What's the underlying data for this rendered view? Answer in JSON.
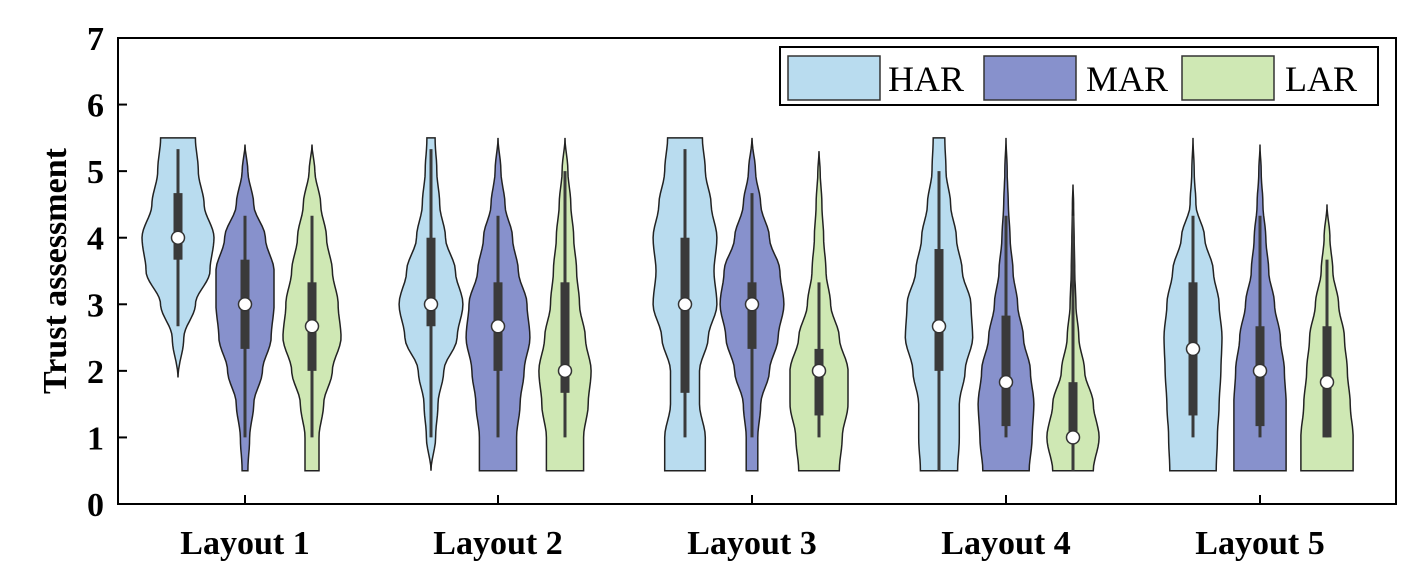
{
  "chart_data": {
    "type": "violin",
    "ylabel": "Trust assessment",
    "ylim": [
      0,
      7
    ],
    "yticks": [
      "0",
      "1",
      "2",
      "3",
      "4",
      "5",
      "6",
      "7"
    ],
    "categories": [
      "Layout 1",
      "Layout 2",
      "Layout 3",
      "Layout 4",
      "Layout 5"
    ],
    "legend_position": "top-right",
    "series": [
      {
        "name": "HAR",
        "color": "#b9dcef",
        "groups": [
          {
            "median": 4.0,
            "q1": 3.67,
            "q3": 4.67,
            "wlo": 2.67,
            "whi": 5.33,
            "profile": [
              [
                1.9,
                0
              ],
              [
                2.5,
                0.1
              ],
              [
                3.0,
                0.3
              ],
              [
                3.5,
                0.55
              ],
              [
                4.0,
                0.62
              ],
              [
                4.5,
                0.45
              ],
              [
                5.0,
                0.35
              ],
              [
                5.5,
                0.3
              ]
            ]
          },
          {
            "median": 3.0,
            "q1": 2.67,
            "q3": 4.0,
            "wlo": 1.0,
            "whi": 5.33,
            "profile": [
              [
                0.5,
                0
              ],
              [
                1.0,
                0.08
              ],
              [
                1.5,
                0.12
              ],
              [
                2.0,
                0.22
              ],
              [
                2.5,
                0.45
              ],
              [
                3.0,
                0.55
              ],
              [
                3.5,
                0.42
              ],
              [
                4.0,
                0.25
              ],
              [
                4.5,
                0.15
              ],
              [
                5.0,
                0.1
              ],
              [
                5.5,
                0.07
              ]
            ]
          },
          {
            "median": 3.0,
            "q1": 1.67,
            "q3": 4.0,
            "wlo": 1.0,
            "whi": 5.33,
            "profile": [
              [
                0.5,
                0.35
              ],
              [
                1.0,
                0.35
              ],
              [
                1.5,
                0.25
              ],
              [
                2.0,
                0.25
              ],
              [
                2.5,
                0.4
              ],
              [
                3.0,
                0.55
              ],
              [
                3.5,
                0.5
              ],
              [
                4.0,
                0.55
              ],
              [
                4.5,
                0.45
              ],
              [
                5.0,
                0.35
              ],
              [
                5.5,
                0.3
              ]
            ]
          },
          {
            "median": 2.67,
            "q1": 2.0,
            "q3": 3.83,
            "wlo": 0.5,
            "whi": 5.0,
            "profile": [
              [
                0.5,
                0.32
              ],
              [
                1.0,
                0.35
              ],
              [
                1.5,
                0.35
              ],
              [
                2.0,
                0.45
              ],
              [
                2.5,
                0.58
              ],
              [
                3.0,
                0.55
              ],
              [
                3.5,
                0.4
              ],
              [
                4.0,
                0.3
              ],
              [
                4.5,
                0.2
              ],
              [
                5.0,
                0.12
              ],
              [
                5.5,
                0.1
              ]
            ]
          },
          {
            "median": 2.33,
            "q1": 1.33,
            "q3": 3.33,
            "wlo": 1.0,
            "whi": 4.33,
            "profile": [
              [
                0.5,
                0.4
              ],
              [
                1.0,
                0.42
              ],
              [
                1.5,
                0.45
              ],
              [
                2.0,
                0.48
              ],
              [
                2.5,
                0.5
              ],
              [
                3.0,
                0.45
              ],
              [
                3.5,
                0.35
              ],
              [
                4.0,
                0.2
              ],
              [
                4.5,
                0.05
              ],
              [
                5.0,
                0.02
              ],
              [
                5.5,
                0
              ]
            ]
          }
        ]
      },
      {
        "name": "MAR",
        "color": "#8791cc",
        "groups": [
          {
            "median": 3.0,
            "q1": 2.33,
            "q3": 3.67,
            "wlo": 1.0,
            "whi": 4.33,
            "profile": [
              [
                0.5,
                0.05
              ],
              [
                1.0,
                0.08
              ],
              [
                1.5,
                0.15
              ],
              [
                2.0,
                0.3
              ],
              [
                2.5,
                0.45
              ],
              [
                3.0,
                0.5
              ],
              [
                3.5,
                0.5
              ],
              [
                4.0,
                0.35
              ],
              [
                4.5,
                0.15
              ],
              [
                5.0,
                0.05
              ],
              [
                5.4,
                0
              ]
            ]
          },
          {
            "median": 2.67,
            "q1": 2.0,
            "q3": 3.33,
            "wlo": 1.0,
            "whi": 4.33,
            "profile": [
              [
                0.5,
                0.32
              ],
              [
                1.0,
                0.32
              ],
              [
                1.5,
                0.38
              ],
              [
                2.0,
                0.45
              ],
              [
                2.5,
                0.55
              ],
              [
                3.0,
                0.5
              ],
              [
                3.5,
                0.35
              ],
              [
                4.0,
                0.25
              ],
              [
                4.5,
                0.12
              ],
              [
                5.0,
                0.05
              ],
              [
                5.5,
                0
              ]
            ]
          },
          {
            "median": 3.0,
            "q1": 2.33,
            "q3": 3.33,
            "wlo": 1.0,
            "whi": 4.67,
            "profile": [
              [
                0.5,
                0.1
              ],
              [
                1.0,
                0.1
              ],
              [
                1.5,
                0.15
              ],
              [
                2.0,
                0.3
              ],
              [
                2.5,
                0.45
              ],
              [
                3.0,
                0.55
              ],
              [
                3.5,
                0.48
              ],
              [
                4.0,
                0.3
              ],
              [
                4.5,
                0.15
              ],
              [
                5.0,
                0.06
              ],
              [
                5.5,
                0
              ]
            ]
          },
          {
            "median": 1.83,
            "q1": 1.17,
            "q3": 2.83,
            "wlo": 1.0,
            "whi": 4.33,
            "profile": [
              [
                0.5,
                0.4
              ],
              [
                1.0,
                0.45
              ],
              [
                1.5,
                0.48
              ],
              [
                2.0,
                0.42
              ],
              [
                2.5,
                0.3
              ],
              [
                3.0,
                0.2
              ],
              [
                3.5,
                0.12
              ],
              [
                4.0,
                0.07
              ],
              [
                4.5,
                0.04
              ],
              [
                5.0,
                0.02
              ],
              [
                5.5,
                0
              ]
            ]
          },
          {
            "median": 2.0,
            "q1": 1.17,
            "q3": 2.67,
            "wlo": 1.0,
            "whi": 4.33,
            "profile": [
              [
                0.5,
                0.45
              ],
              [
                1.0,
                0.45
              ],
              [
                1.5,
                0.45
              ],
              [
                2.0,
                0.42
              ],
              [
                2.5,
                0.35
              ],
              [
                3.0,
                0.25
              ],
              [
                3.5,
                0.15
              ],
              [
                4.0,
                0.1
              ],
              [
                4.5,
                0.05
              ],
              [
                5.0,
                0.02
              ],
              [
                5.4,
                0
              ]
            ]
          }
        ]
      },
      {
        "name": "LAR",
        "color": "#cfe8b4",
        "groups": [
          {
            "median": 2.67,
            "q1": 2.0,
            "q3": 3.33,
            "wlo": 1.0,
            "whi": 4.33,
            "profile": [
              [
                0.5,
                0.12
              ],
              [
                1.0,
                0.12
              ],
              [
                1.5,
                0.2
              ],
              [
                2.0,
                0.35
              ],
              [
                2.5,
                0.5
              ],
              [
                3.0,
                0.45
              ],
              [
                3.5,
                0.35
              ],
              [
                4.0,
                0.25
              ],
              [
                4.5,
                0.15
              ],
              [
                5.0,
                0.05
              ],
              [
                5.4,
                0
              ]
            ]
          },
          {
            "median": 2.0,
            "q1": 1.67,
            "q3": 3.33,
            "wlo": 1.0,
            "whi": 5.0,
            "profile": [
              [
                0.5,
                0.32
              ],
              [
                1.0,
                0.32
              ],
              [
                1.5,
                0.4
              ],
              [
                2.0,
                0.45
              ],
              [
                2.5,
                0.35
              ],
              [
                3.0,
                0.25
              ],
              [
                3.5,
                0.2
              ],
              [
                4.0,
                0.15
              ],
              [
                4.5,
                0.1
              ],
              [
                5.0,
                0.05
              ],
              [
                5.5,
                0
              ]
            ]
          },
          {
            "median": 2.0,
            "q1": 1.33,
            "q3": 2.33,
            "wlo": 1.0,
            "whi": 3.33,
            "profile": [
              [
                0.5,
                0.35
              ],
              [
                1.0,
                0.4
              ],
              [
                1.5,
                0.5
              ],
              [
                2.0,
                0.5
              ],
              [
                2.5,
                0.35
              ],
              [
                3.0,
                0.2
              ],
              [
                3.5,
                0.12
              ],
              [
                4.0,
                0.08
              ],
              [
                4.5,
                0.05
              ],
              [
                5.0,
                0.02
              ],
              [
                5.3,
                0
              ]
            ]
          },
          {
            "median": 1.0,
            "q1": 1.0,
            "q3": 1.83,
            "wlo": 0.5,
            "whi": 4.33,
            "profile": [
              [
                0.5,
                0.35
              ],
              [
                1.0,
                0.45
              ],
              [
                1.5,
                0.35
              ],
              [
                2.0,
                0.2
              ],
              [
                2.5,
                0.1
              ],
              [
                3.0,
                0.05
              ],
              [
                3.5,
                0.03
              ],
              [
                4.0,
                0.02
              ],
              [
                4.5,
                0.01
              ],
              [
                4.8,
                0
              ]
            ]
          },
          {
            "median": 1.83,
            "q1": 1.0,
            "q3": 2.67,
            "wlo": 1.0,
            "whi": 3.67,
            "profile": [
              [
                0.5,
                0.45
              ],
              [
                1.0,
                0.45
              ],
              [
                1.5,
                0.4
              ],
              [
                2.0,
                0.35
              ],
              [
                2.5,
                0.3
              ],
              [
                3.0,
                0.2
              ],
              [
                3.5,
                0.1
              ],
              [
                4.0,
                0.05
              ],
              [
                4.5,
                0
              ]
            ]
          }
        ]
      }
    ]
  }
}
